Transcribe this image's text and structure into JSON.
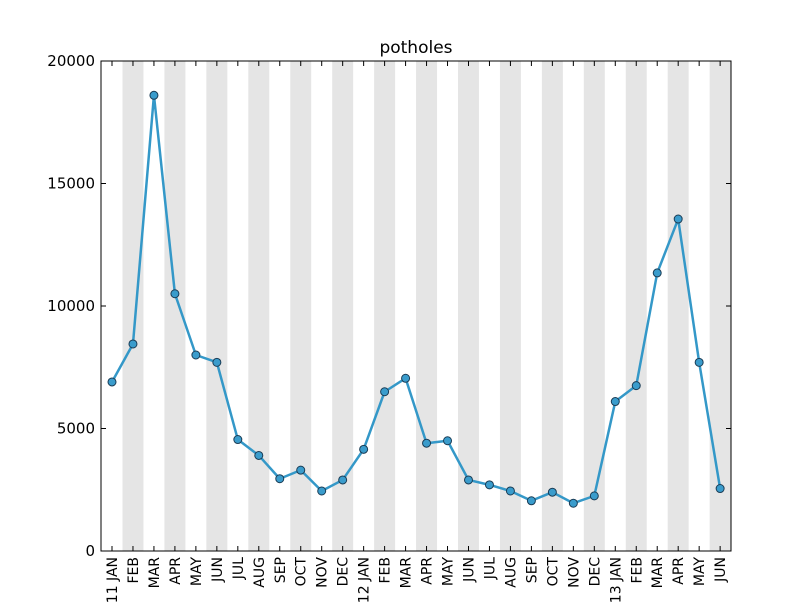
{
  "chart_data": {
    "type": "line",
    "title": "potholes",
    "xlabel": "",
    "ylabel": "",
    "categories": [
      "11 JAN",
      "FEB",
      "MAR",
      "APR",
      "MAY",
      "JUN",
      "JUL",
      "AUG",
      "SEP",
      "OCT",
      "NOV",
      "DEC",
      "12 JAN",
      "FEB",
      "MAR",
      "APR",
      "MAY",
      "JUN",
      "JUL",
      "AUG",
      "SEP",
      "OCT",
      "NOV",
      "DEC",
      "13 JAN",
      "FEB",
      "MAR",
      "APR",
      "MAY",
      "JUN"
    ],
    "series": [
      {
        "values": [
          6900,
          8450,
          18600,
          10500,
          8000,
          7700,
          4550,
          3900,
          2950,
          3300,
          2450,
          2900,
          4150,
          6500,
          7050,
          4400,
          4500,
          2900,
          2700,
          2450,
          2050,
          2400,
          1950,
          2250,
          6100,
          6750,
          11350,
          13550,
          7700,
          2550
        ],
        "color": "#3498c8"
      }
    ],
    "ylim": [
      0,
      20000
    ],
    "yticks": [
      0,
      5000,
      10000,
      15000,
      20000
    ],
    "grid": false,
    "alternating_bands_color": "#e5e5e5",
    "marker_fill": "#3a9ccc",
    "marker_edge": "#1a3c55"
  }
}
